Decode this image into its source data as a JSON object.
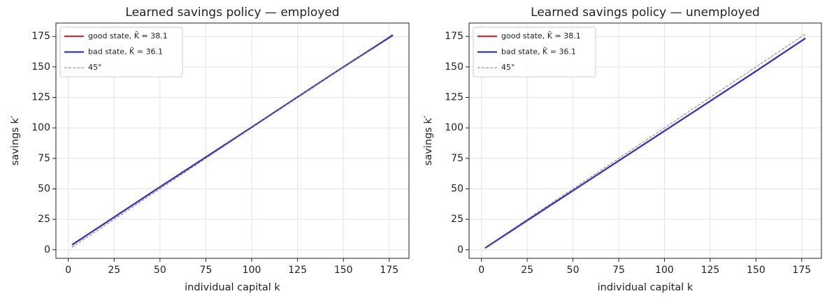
{
  "chart_data": [
    {
      "type": "line",
      "title": "Learned savings policy — employed",
      "x_label": "individual capital k",
      "y_label": "savings k′",
      "x": [
        2,
        50,
        100,
        150,
        177
      ],
      "series": [
        {
          "name": "good state, K̄ = 38.1",
          "color": "#d03030",
          "dash": false,
          "values": [
            4,
            51.5,
            100.5,
            150,
            176
          ]
        },
        {
          "name": "bad state, K̄ = 36.1",
          "color": "#3535c8",
          "dash": false,
          "values": [
            4,
            51.5,
            100.5,
            150,
            176
          ]
        },
        {
          "name": "45°",
          "color": "#808080",
          "dash": true,
          "values": [
            2,
            50,
            100,
            150,
            177
          ]
        }
      ],
      "xlim": [
        -6.75,
        185.75
      ],
      "ylim": [
        -7,
        186
      ],
      "xticks": [
        0,
        25,
        50,
        75,
        100,
        125,
        150,
        175
      ],
      "yticks": [
        0,
        25,
        50,
        75,
        100,
        125,
        150,
        175
      ],
      "grid": true,
      "legend": "upper left"
    },
    {
      "type": "line",
      "title": "Learned savings policy — unemployed",
      "x_label": "individual capital k",
      "y_label": "savings k′",
      "x": [
        2,
        50,
        100,
        150,
        177
      ],
      "series": [
        {
          "name": "good state, K̄ = 38.1",
          "color": "#d03030",
          "dash": false,
          "values": [
            1.5,
            48.5,
            97.5,
            146.5,
            173.5
          ]
        },
        {
          "name": "bad state, K̄ = 36.1",
          "color": "#3535c8",
          "dash": false,
          "values": [
            1.5,
            48.5,
            97.5,
            146.5,
            173.5
          ]
        },
        {
          "name": "45°",
          "color": "#808080",
          "dash": true,
          "values": [
            2,
            50,
            100,
            150,
            177
          ]
        }
      ],
      "xlim": [
        -6.75,
        185.75
      ],
      "ylim": [
        -7,
        186
      ],
      "xticks": [
        0,
        25,
        50,
        75,
        100,
        125,
        150,
        175
      ],
      "yticks": [
        0,
        25,
        50,
        75,
        100,
        125,
        150,
        175
      ],
      "grid": true,
      "legend": "upper left"
    }
  ]
}
